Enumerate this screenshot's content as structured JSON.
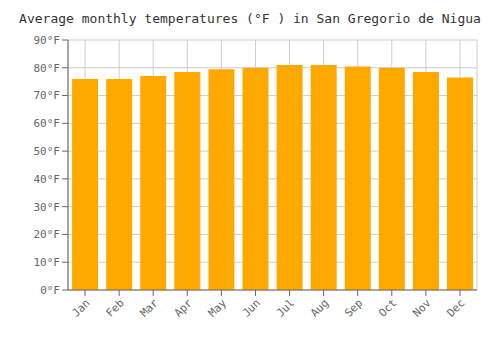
{
  "chart_data": {
    "type": "bar",
    "title": "Average monthly temperatures (°F ) in San Gregorio de Nigua",
    "categories": [
      "Jan",
      "Feb",
      "Mar",
      "Apr",
      "May",
      "Jun",
      "Jul",
      "Aug",
      "Sep",
      "Oct",
      "Nov",
      "Dec"
    ],
    "values": [
      76,
      76,
      77,
      78.5,
      79.5,
      80,
      81,
      81,
      80.5,
      80,
      78.5,
      76.5
    ],
    "color": "#FFA800",
    "ylim": [
      0,
      90
    ],
    "yticks": [
      {
        "value": 0,
        "label": "0°F"
      },
      {
        "value": 10,
        "label": "10°F"
      },
      {
        "value": 20,
        "label": "20°F"
      },
      {
        "value": 30,
        "label": "30°F"
      },
      {
        "value": 40,
        "label": "40°F"
      },
      {
        "value": 50,
        "label": "50°F"
      },
      {
        "value": 60,
        "label": "60°F"
      },
      {
        "value": 70,
        "label": "70°F"
      },
      {
        "value": 80,
        "label": "80°F"
      },
      {
        "value": 90,
        "label": "90°F"
      }
    ],
    "grid": true
  }
}
